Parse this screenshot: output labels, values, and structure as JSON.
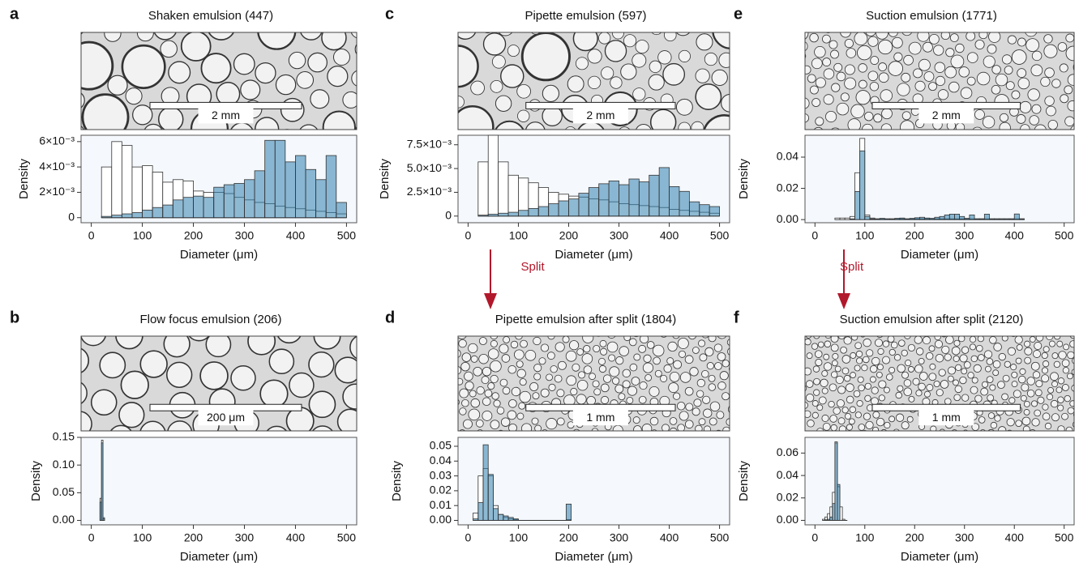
{
  "chart_data": [
    {
      "type": "histogram",
      "label": "a",
      "title": "Shaken emulsion (447)",
      "scale_bar": "2 mm",
      "bins": [
        20,
        40,
        60,
        80,
        100,
        120,
        140,
        160,
        180,
        200,
        220,
        240,
        260,
        280,
        300,
        320,
        340,
        360,
        380,
        400,
        420,
        440,
        460,
        480,
        500
      ],
      "series": [
        {
          "color": "#ffffff",
          "values": [
            0.004,
            0.006,
            0.0057,
            0.004,
            0.0041,
            0.0036,
            0.0028,
            0.003,
            0.0029,
            0.0021,
            0.002,
            0.002,
            0.0019,
            0.0016,
            0.0014,
            0.0012,
            0.0011,
            0.0009,
            0.0008,
            0.0007,
            0.0006,
            0.0005,
            0.0004,
            0.0003
          ]
        },
        {
          "color": "#2f7fae",
          "values": [
            0.0001,
            0.0002,
            0.0003,
            0.0004,
            0.0006,
            0.0008,
            0.001,
            0.0014,
            0.0016,
            0.0017,
            0.0016,
            0.0024,
            0.0026,
            0.0027,
            0.003,
            0.0037,
            0.0061,
            0.0061,
            0.0044,
            0.0049,
            0.0038,
            0.003,
            0.0049,
            0.0012
          ]
        }
      ],
      "xlim": [
        -20,
        520
      ],
      "xticks": [
        0,
        100,
        200,
        300,
        400,
        500
      ],
      "ylim": [
        -0.0004,
        0.0065
      ],
      "yticks": [
        0,
        {
          "value": 0.002,
          "label": "2×10⁻³"
        },
        {
          "value": 0.004,
          "label": "4×10⁻³"
        },
        {
          "value": 0.006,
          "label": "6×10⁻³"
        }
      ],
      "xlabel": "Diameter (μm)",
      "ylabel": "Density"
    },
    {
      "type": "histogram",
      "label": "b",
      "title": "Flow focus emulsion (206)",
      "scale_bar": "200 μm",
      "bins": [
        17,
        20,
        23,
        26
      ],
      "series": [
        {
          "color": "#ffffff",
          "values": [
            0.04,
            0.145,
            0.005
          ]
        },
        {
          "color": "#2f7fae",
          "values": [
            0.033,
            0.14,
            0.003
          ]
        }
      ],
      "xlim": [
        -20,
        520
      ],
      "xticks": [
        0,
        100,
        200,
        300,
        400,
        500
      ],
      "ylim": [
        -0.008,
        0.15
      ],
      "yticks": [
        {
          "value": 0,
          "label": "0.00"
        },
        0.05,
        {
          "value": 0.1,
          "label": "0.10"
        },
        0.15
      ],
      "xlabel": "Diameter (μm)",
      "ylabel": "Density"
    },
    {
      "type": "histogram",
      "label": "c",
      "title": "Pipette emulsion (597)",
      "scale_bar": "2 mm",
      "annotation": "Split",
      "bins": [
        20,
        40,
        60,
        80,
        100,
        120,
        140,
        160,
        180,
        200,
        220,
        240,
        260,
        280,
        300,
        320,
        340,
        360,
        380,
        400,
        420,
        440,
        460,
        480,
        500
      ],
      "series": [
        {
          "color": "#ffffff",
          "values": [
            0.0057,
            0.0085,
            0.0057,
            0.0043,
            0.004,
            0.0035,
            0.003,
            0.0025,
            0.0023,
            0.0021,
            0.002,
            0.0018,
            0.0017,
            0.0015,
            0.0013,
            0.0012,
            0.0011,
            0.001,
            0.0009,
            0.0007,
            0.0006,
            0.0005,
            0.0004,
            0.0003
          ]
        },
        {
          "color": "#2f7fae",
          "values": [
            0.0001,
            0.0002,
            0.0003,
            0.0004,
            0.0006,
            0.0008,
            0.001,
            0.0013,
            0.0016,
            0.0018,
            0.0024,
            0.003,
            0.0034,
            0.0037,
            0.0033,
            0.0039,
            0.0036,
            0.0043,
            0.0051,
            0.0031,
            0.0026,
            0.0015,
            0.0012,
            0.001
          ]
        }
      ],
      "xlim": [
        -20,
        520
      ],
      "xticks": [
        0,
        100,
        200,
        300,
        400,
        500
      ],
      "ylim": [
        -0.0007,
        0.0085
      ],
      "yticks": [
        0,
        {
          "value": 0.0025,
          "label": "2.5×10⁻³"
        },
        {
          "value": 0.005,
          "label": "5.0×10⁻³"
        },
        {
          "value": 0.0075,
          "label": "7.5×10⁻³"
        }
      ],
      "xlabel": "Diameter (μm)",
      "ylabel": "Density"
    },
    {
      "type": "histogram",
      "label": "d",
      "title": "Pipette emulsion after split (1804)",
      "scale_bar": "1 mm",
      "bins": [
        10,
        20,
        30,
        40,
        50,
        60,
        70,
        80,
        90,
        100,
        195,
        205
      ],
      "series": [
        {
          "color": "#ffffff",
          "values": [
            0.005,
            0.03,
            0.035,
            0.03,
            0.01,
            0.004,
            0.002,
            0.001,
            0.0005,
            0,
            0.0005
          ]
        },
        {
          "color": "#2f7fae",
          "values": [
            0.001,
            0.012,
            0.051,
            0.031,
            0.008,
            0.004,
            0.003,
            0.002,
            0.001,
            0,
            0.011
          ]
        }
      ],
      "xlim": [
        -20,
        520
      ],
      "xticks": [
        0,
        100,
        200,
        300,
        400,
        500
      ],
      "ylim": [
        -0.003,
        0.056
      ],
      "yticks": [
        {
          "value": 0,
          "label": "0.00"
        },
        0.01,
        0.02,
        0.03,
        0.04,
        0.05
      ],
      "xlabel": "Diameter (μm)",
      "ylabel": "Density"
    },
    {
      "type": "histogram",
      "label": "e",
      "title": "Suction emulsion (1771)",
      "scale_bar": "2 mm",
      "annotation": "Split",
      "bins": [
        40,
        50,
        60,
        70,
        80,
        90,
        100,
        110,
        120,
        130,
        140,
        150,
        160,
        170,
        180,
        190,
        200,
        210,
        220,
        230,
        240,
        250,
        260,
        270,
        280,
        290,
        300,
        310,
        320,
        330,
        340,
        350,
        360,
        370,
        380,
        390,
        400,
        410,
        420
      ],
      "series": [
        {
          "color": "#ffffff",
          "values": [
            0.001,
            0.001,
            0.001,
            0.002,
            0.03,
            0.052,
            0.003,
            0.001,
            0.0005,
            0.0005,
            0.0005,
            0.0005,
            0.0005,
            0.0005,
            0.0005,
            0.0005,
            0.0005,
            0.0005,
            0.0005,
            0.0005,
            0.0005,
            0.0005,
            0.0005,
            0.0005,
            0.0005,
            0.0005,
            0.0005,
            0.0005,
            0.0005,
            0.0005,
            0.0005,
            0.0005,
            0.0005,
            0.0005,
            0.0005,
            0.0005,
            0.0005,
            0.0005
          ]
        },
        {
          "color": "#2f7fae",
          "values": [
            0,
            0,
            0,
            0.0005,
            0.018,
            0.044,
            0.002,
            0.0005,
            0.0005,
            0.0008,
            0.0005,
            0.0005,
            0.0008,
            0.001,
            0.0005,
            0.0008,
            0.0012,
            0.0015,
            0.001,
            0.0008,
            0.0015,
            0.002,
            0.003,
            0.0035,
            0.0035,
            0.002,
            0.0008,
            0.003,
            0.0005,
            0.0005,
            0.0035,
            0.0005,
            0.0005,
            0.0005,
            0.0005,
            0.0005,
            0.0036,
            0.0005
          ]
        }
      ],
      "xlim": [
        -20,
        520
      ],
      "xticks": [
        0,
        100,
        200,
        300,
        400,
        500
      ],
      "ylim": [
        -0.002,
        0.054
      ],
      "yticks": [
        {
          "value": 0,
          "label": "0.00"
        },
        0.02,
        0.04
      ],
      "xlabel": "Diameter (μm)",
      "ylabel": "Density"
    },
    {
      "type": "histogram",
      "label": "f",
      "title": "Suction emulsion after split (2120)",
      "scale_bar": "1 mm",
      "bins": [
        15,
        20,
        25,
        30,
        35,
        40,
        45,
        50,
        55,
        60,
        65
      ],
      "series": [
        {
          "color": "#ffffff",
          "values": [
            0.001,
            0.003,
            0.006,
            0.012,
            0.025,
            0.07,
            0.03,
            0.012,
            0.001,
            0
          ]
        },
        {
          "color": "#2f7fae",
          "values": [
            0,
            0.0005,
            0.001,
            0.003,
            0.015,
            0.069,
            0.032,
            0,
            0,
            0
          ]
        }
      ],
      "xlim": [
        -20,
        520
      ],
      "xticks": [
        0,
        100,
        200,
        300,
        400,
        500
      ],
      "ylim": [
        -0.004,
        0.074
      ],
      "yticks": [
        {
          "value": 0,
          "label": "0.00"
        },
        0.02,
        0.04,
        0.06
      ],
      "xlabel": "Diameter (μm)",
      "ylabel": "Density"
    }
  ]
}
